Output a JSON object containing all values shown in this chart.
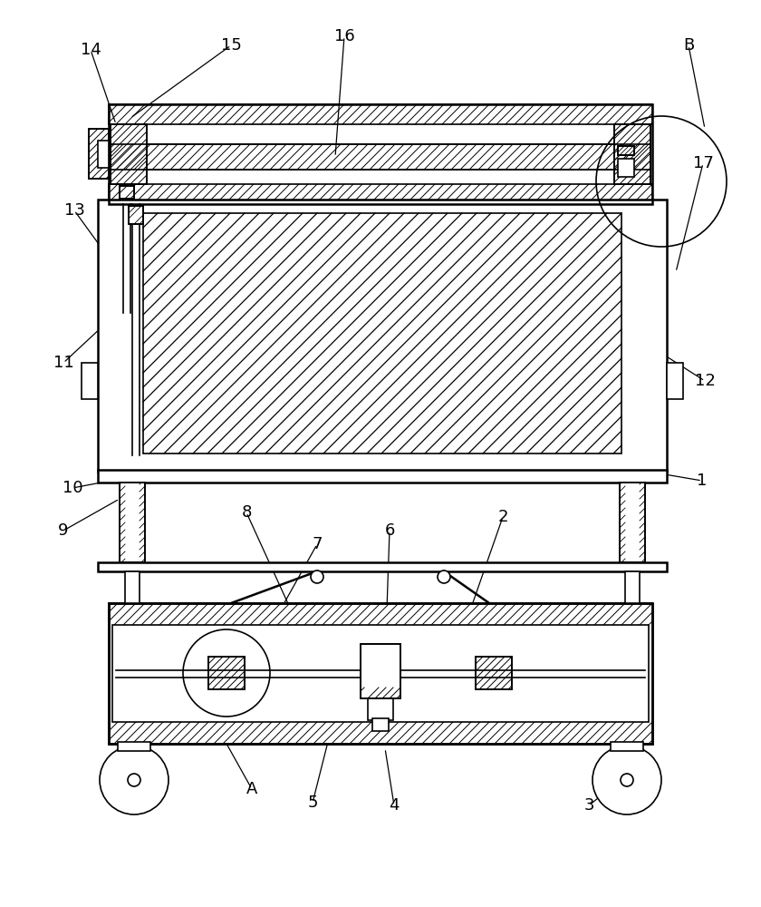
{
  "bg_color": "#ffffff",
  "line_color": "#000000",
  "fig_width": 8.4,
  "fig_height": 10.0
}
